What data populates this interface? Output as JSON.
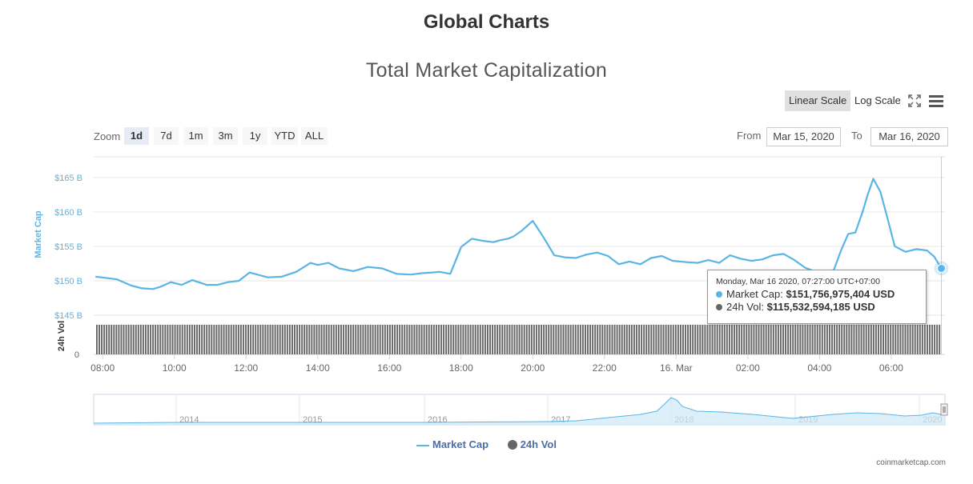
{
  "page_title": "Global Charts",
  "controls": {
    "linear_scale": "Linear Scale",
    "log_scale": "Log Scale",
    "fullscreen_icon": "fullscreen-icon",
    "menu_icon": "hamburger-menu-icon",
    "zoom_label": "Zoom",
    "zoom_buttons": [
      "1d",
      "7d",
      "1m",
      "3m",
      "1y",
      "YTD",
      "ALL"
    ],
    "zoom_active": "1d",
    "from_label": "From",
    "from_value": "Mar 15, 2020",
    "to_label": "To",
    "to_value": "Mar 16, 2020"
  },
  "tooltip": {
    "date": "Monday, Mar 16 2020, 07:27:00 UTC+07:00",
    "market_cap_label": "Market Cap:",
    "market_cap_value": "$151,756,975,404 USD",
    "vol_label": "24h Vol:",
    "vol_value": "$115,532,594,185 USD"
  },
  "legend": {
    "market_cap": "Market Cap",
    "vol": "24h Vol"
  },
  "credits": "coinmarketcap.com",
  "chart_data": {
    "type": "line",
    "title": "Total Market Capitalization",
    "ylabel": "Market Cap",
    "ylabel2": "24h Vol",
    "ylim": [
      145,
      168
    ],
    "y_unit": "B USD",
    "y_ticks": [
      "$145 B",
      "$150 B",
      "$155 B",
      "$160 B",
      "$165 B"
    ],
    "y_tick_values": [
      145,
      150,
      155,
      160,
      165
    ],
    "vol_ticks": [
      "0"
    ],
    "x_range": [
      7.75,
      31.5
    ],
    "x_ticks": [
      "08:00",
      "10:00",
      "12:00",
      "14:00",
      "16:00",
      "18:00",
      "20:00",
      "22:00",
      "16. Mar",
      "02:00",
      "04:00",
      "06:00"
    ],
    "x_tick_values": [
      8,
      10,
      12,
      14,
      16,
      18,
      20,
      22,
      24,
      26,
      28,
      30
    ],
    "grid": true,
    "legend_position": "bottom",
    "colors": {
      "market_cap": "#5ab4e5",
      "volume": "#666666",
      "axis_label": "#5ab4e5"
    },
    "series": [
      {
        "name": "Market Cap",
        "x": [
          7.8,
          8.4,
          8.8,
          9.1,
          9.4,
          9.6,
          9.9,
          10.2,
          10.5,
          10.9,
          11.2,
          11.5,
          11.8,
          12.1,
          12.6,
          13.0,
          13.4,
          13.8,
          14.0,
          14.3,
          14.6,
          15.0,
          15.4,
          15.8,
          16.2,
          16.6,
          16.9,
          17.2,
          17.4,
          17.7,
          18.0,
          18.3,
          18.6,
          18.9,
          19.1,
          19.3,
          19.45,
          19.7,
          20.0,
          20.3,
          20.6,
          20.9,
          21.2,
          21.5,
          21.8,
          22.1,
          22.4,
          22.7,
          23.0,
          23.3,
          23.6,
          23.9,
          24.1,
          24.3,
          24.6,
          24.9,
          25.2,
          25.5,
          25.8,
          26.1,
          26.4,
          26.7,
          27.0,
          27.3,
          27.6,
          27.9,
          28.2,
          28.4,
          28.6,
          28.8,
          29.0,
          29.2,
          29.35,
          29.5,
          29.7,
          29.9,
          30.1,
          30.4,
          30.7,
          31.0,
          31.2,
          31.4
        ],
        "y": [
          150.6,
          150.2,
          149.3,
          148.9,
          148.8,
          149.1,
          149.8,
          149.4,
          150.1,
          149.4,
          149.4,
          149.8,
          150.0,
          151.2,
          150.5,
          150.6,
          151.3,
          152.6,
          152.3,
          152.6,
          151.8,
          151.4,
          152.0,
          151.8,
          151.0,
          150.9,
          151.1,
          151.2,
          151.3,
          151.0,
          154.9,
          156.1,
          155.8,
          155.6,
          155.9,
          156.1,
          156.4,
          157.3,
          158.7,
          156.3,
          153.7,
          153.4,
          153.3,
          153.8,
          154.1,
          153.6,
          152.4,
          152.8,
          152.4,
          153.3,
          153.6,
          152.9,
          152.8,
          152.7,
          152.6,
          153.0,
          152.6,
          153.7,
          153.2,
          152.9,
          153.1,
          153.7,
          153.9,
          153.0,
          151.9,
          151.3,
          150.9,
          151.6,
          154.4,
          156.8,
          157.0,
          160.0,
          162.6,
          164.8,
          162.9,
          159.0,
          155.0,
          154.2,
          154.6,
          154.4,
          153.5,
          151.8
        ]
      },
      {
        "name": "24h Vol",
        "values_note_only_bars": "",
        "y_relative": 0.85
      }
    ],
    "navigator": {
      "x_labels": [
        "2014",
        "2015",
        "2016",
        "2017",
        "2018",
        "2019",
        "2020"
      ]
    }
  }
}
